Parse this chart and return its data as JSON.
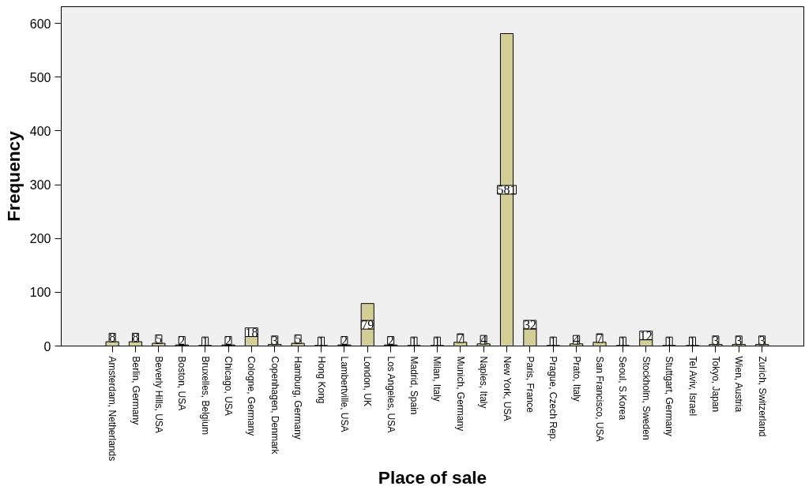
{
  "chart_data": {
    "type": "bar",
    "xlabel": "Place of sale",
    "ylabel": "Frequency",
    "categories": [
      "Amsterdam, Netherlands",
      "Berlin, Germany",
      "Beverly Hills, USA",
      "Boston, USA",
      "Bruxelles, Belgium",
      "Chicago, USA",
      "Cologne, Germany",
      "Copenhagen, Denmark",
      "Hamburg, Germany",
      "Hong Kong",
      "Lambertville, USA",
      "London, UK",
      "Los Angeles, USA",
      "Madrid, Spain",
      "Milan, Italy",
      "Munich, Germany",
      "Naples, Italy",
      "New York, USA",
      "Paris, France",
      "Prague, Czech Rep.",
      "Prato, Italy",
      "San Francisco, USA",
      "Seoul, S.Korea",
      "Stockholm, Sweden",
      "Stuttgart, Germany",
      "Tel Aviv, Israel",
      "Tokyo, Japan",
      "Wien, Austria",
      "Zurich, Switzerland"
    ],
    "values": [
      8,
      8,
      5,
      2,
      1,
      2,
      18,
      3,
      5,
      1,
      2,
      79,
      2,
      1,
      1,
      7,
      4,
      581,
      32,
      1,
      4,
      7,
      1,
      12,
      1,
      1,
      3,
      3,
      3
    ],
    "color": "#d3ce97",
    "ylim": [
      0,
      631
    ],
    "yticks": [
      0,
      100,
      200,
      300,
      400,
      500,
      600
    ],
    "data_labels": true
  }
}
